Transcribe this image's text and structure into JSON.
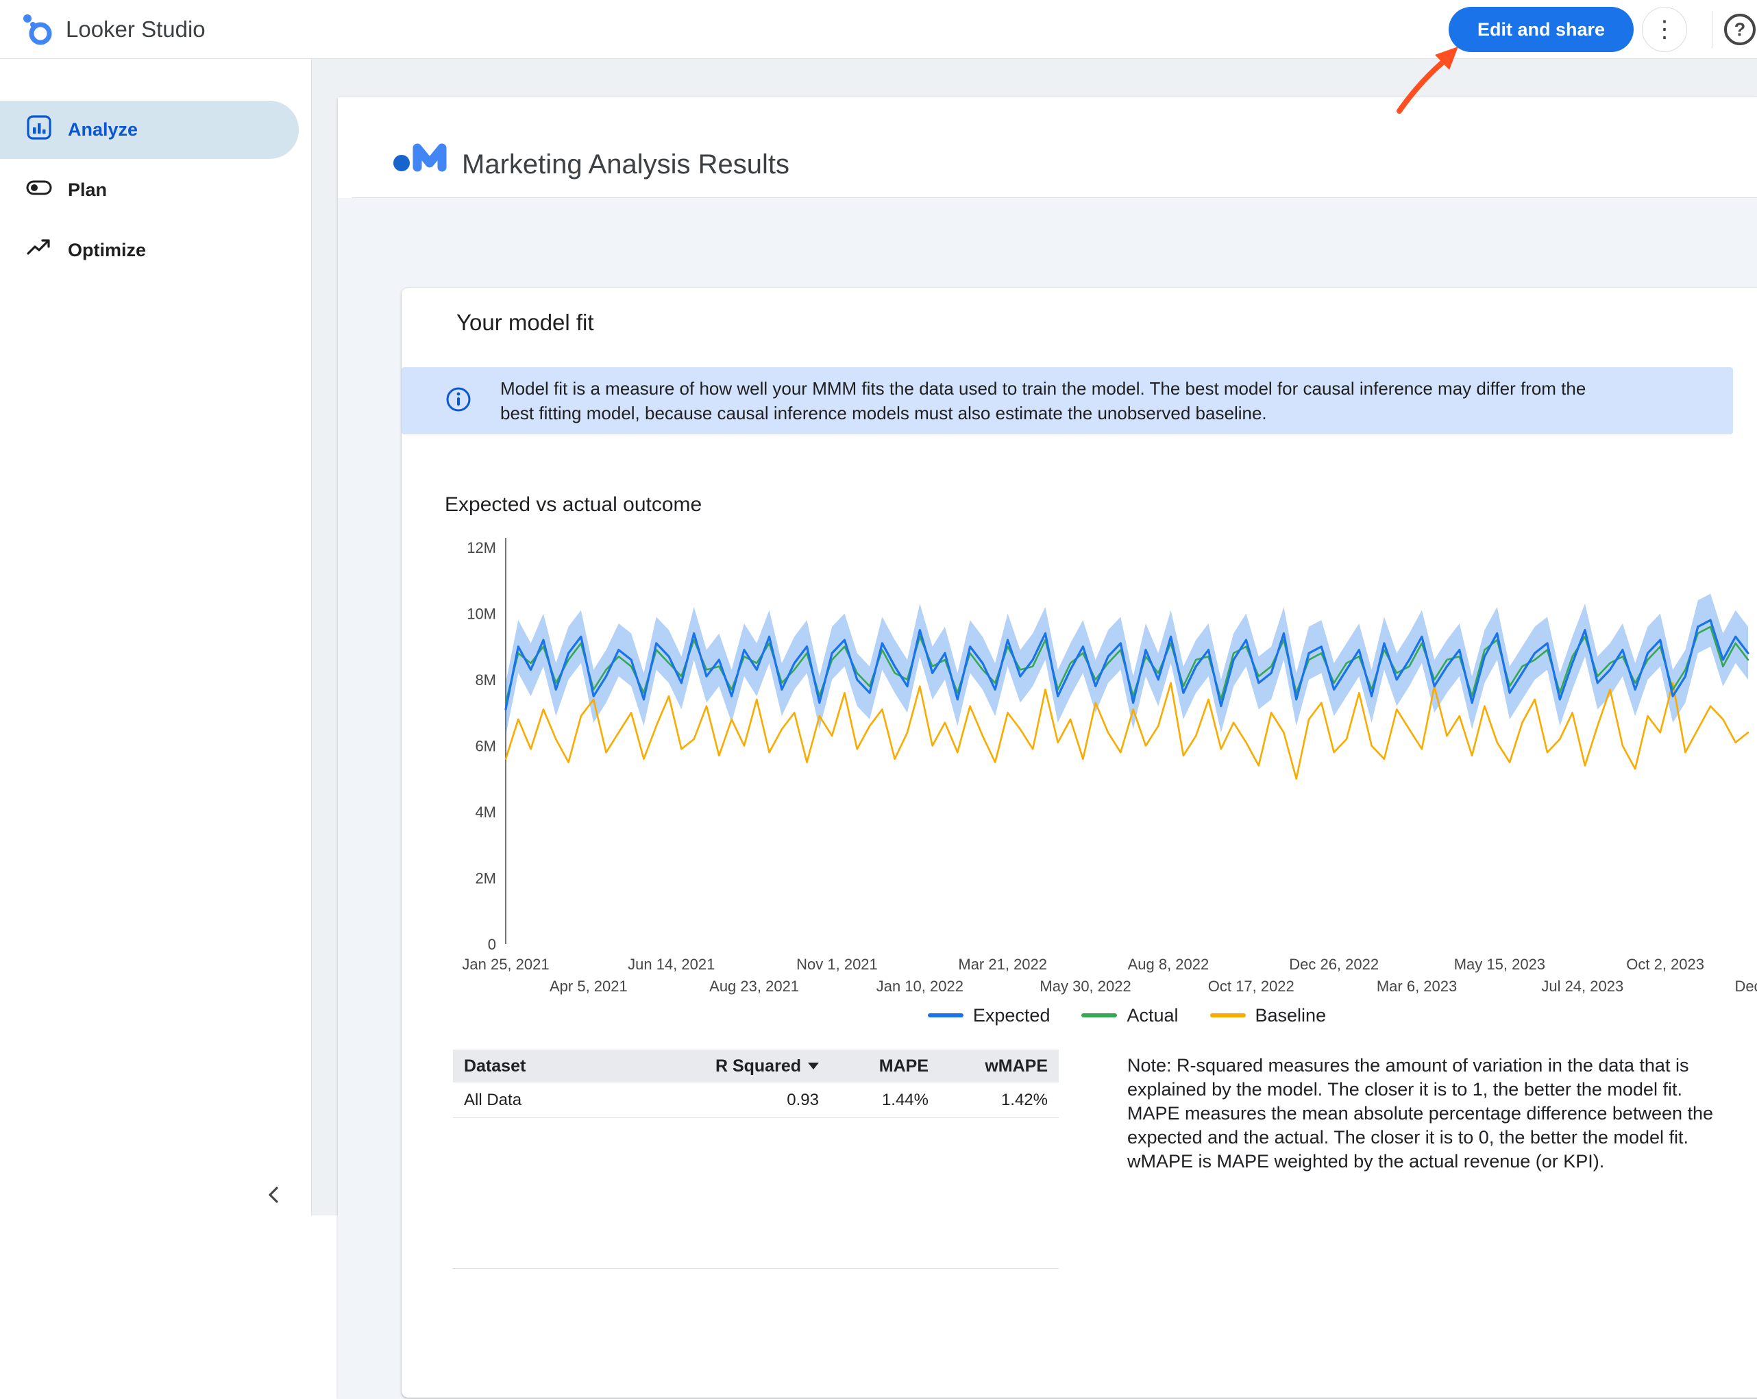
{
  "header": {
    "app_title": "Looker Studio",
    "edit_share_button": "Edit and share",
    "more_options_glyph": "⋮",
    "help_glyph": "?"
  },
  "annotation": {
    "arrow_points_to": "Edit and share"
  },
  "sidebar": {
    "items": [
      {
        "label": "Analyze",
        "selected": true
      },
      {
        "label": "Plan",
        "selected": false
      },
      {
        "label": "Optimize",
        "selected": false
      }
    ]
  },
  "report": {
    "title": "Marketing Analysis Results",
    "card": {
      "title": "Your model fit",
      "info_banner_line1": "Model fit is a measure of how well your MMM fits the data used to train the model. The best model for causal inference may differ from the",
      "info_banner_line2": "best fitting model, because causal inference models must also estimate the unobserved baseline.",
      "section_title": "Expected vs actual outcome"
    },
    "table": {
      "columns": [
        "Dataset",
        "R Squared",
        "MAPE",
        "wMAPE"
      ],
      "sorted_column": "R Squared",
      "rows": [
        [
          "All Data",
          "0.93",
          "1.44%",
          "1.42%"
        ]
      ]
    },
    "note": "Note: R-squared measures the amount of variation in the data that is explained by the model. The closer it is to 1, the better the model fit. MAPE measures the mean absolute percentage difference between the expected and the actual. The closer it is to 0, the better the model fit. wMAPE is MAPE weighted by the actual revenue (or KPI)."
  },
  "chart_data": {
    "type": "line",
    "title": "Expected vs actual outcome",
    "unit": "millions",
    "ylim": [
      0,
      12
    ],
    "grid": false,
    "legend_position": "bottom",
    "y_tick_labels": [
      "0",
      "2M",
      "4M",
      "6M",
      "8M",
      "10M",
      "12M"
    ],
    "x_tick_labels": [
      "Jan 25, 2021",
      "Apr 5, 2021",
      "Jun 14, 2021",
      "Aug 23, 2021",
      "Nov 1, 2021",
      "Jan 10, 2022",
      "Mar 21, 2022",
      "May 30, 2022",
      "Aug 8, 2022",
      "Oct 17, 2022",
      "Dec 26, 2022",
      "Mar 6, 2023",
      "May 15, 2023",
      "Jul 24, 2023",
      "Oct 2, 2023",
      "Dec"
    ],
    "band": {
      "series": "Expected",
      "half_width": 0.8,
      "color": "#1a73e8",
      "opacity": 0.33
    },
    "series": [
      {
        "name": "Expected",
        "color": "#1a73e8",
        "values": [
          7.1,
          9.0,
          8.3,
          9.2,
          7.7,
          8.8,
          9.3,
          7.5,
          8.1,
          8.9,
          8.6,
          7.4,
          9.1,
          8.7,
          7.9,
          9.4,
          8.1,
          8.6,
          7.5,
          8.9,
          8.3,
          9.3,
          7.7,
          8.5,
          9.0,
          7.3,
          8.8,
          9.2,
          8.0,
          7.6,
          9.1,
          8.4,
          7.8,
          9.5,
          8.2,
          8.8,
          7.4,
          9.0,
          8.5,
          7.7,
          9.2,
          8.1,
          8.6,
          9.4,
          7.5,
          8.3,
          9.0,
          7.8,
          8.7,
          9.1,
          7.3,
          8.9,
          8.0,
          9.3,
          7.6,
          8.4,
          8.9,
          7.2,
          8.6,
          9.2,
          7.9,
          8.2,
          9.4,
          7.4,
          8.8,
          9.0,
          7.7,
          8.3,
          8.9,
          7.5,
          9.1,
          8.0,
          8.6,
          9.3,
          7.8,
          8.4,
          8.9,
          7.3,
          8.7,
          9.4,
          7.6,
          8.2,
          8.8,
          9.1,
          7.4,
          8.5,
          9.5,
          7.9,
          8.3,
          8.9,
          7.7,
          8.8,
          9.2,
          7.5,
          8.1,
          9.6,
          9.8,
          8.6,
          9.3,
          8.8
        ]
      },
      {
        "name": "Actual",
        "color": "#34a853",
        "values": [
          7.3,
          8.8,
          8.5,
          9.0,
          7.9,
          8.6,
          9.1,
          7.7,
          8.3,
          8.7,
          8.4,
          7.6,
          8.9,
          8.5,
          8.1,
          9.2,
          8.3,
          8.4,
          7.7,
          8.7,
          8.5,
          9.1,
          7.9,
          8.3,
          8.8,
          7.5,
          8.6,
          9.0,
          8.2,
          7.8,
          8.9,
          8.2,
          8.0,
          9.3,
          8.4,
          8.6,
          7.6,
          8.8,
          8.3,
          7.9,
          9.0,
          8.3,
          8.4,
          9.2,
          7.7,
          8.5,
          8.8,
          8.0,
          8.5,
          8.9,
          7.5,
          8.7,
          8.2,
          9.1,
          7.8,
          8.6,
          8.7,
          7.4,
          8.8,
          9.0,
          8.1,
          8.4,
          9.2,
          7.6,
          8.6,
          8.8,
          7.9,
          8.5,
          8.7,
          7.7,
          8.9,
          8.2,
          8.4,
          9.1,
          8.0,
          8.6,
          8.7,
          7.5,
          8.9,
          9.2,
          7.8,
          8.4,
          8.6,
          8.9,
          7.6,
          8.7,
          9.3,
          8.1,
          8.5,
          8.7,
          7.9,
          8.6,
          9.0,
          7.7,
          8.3,
          9.4,
          9.6,
          8.4,
          9.1,
          8.6
        ]
      },
      {
        "name": "Baseline",
        "color": "#f9ab00",
        "values": [
          5.6,
          6.8,
          5.9,
          7.1,
          6.2,
          5.5,
          6.9,
          7.4,
          5.8,
          6.4,
          7.0,
          5.6,
          6.6,
          7.5,
          5.9,
          6.2,
          7.2,
          5.7,
          6.8,
          6.0,
          7.4,
          5.8,
          6.5,
          7.0,
          5.5,
          6.9,
          6.3,
          7.6,
          5.9,
          6.6,
          7.1,
          5.6,
          6.4,
          7.8,
          6.0,
          6.7,
          5.8,
          7.2,
          6.3,
          5.5,
          7.0,
          6.5,
          5.9,
          7.7,
          6.1,
          6.8,
          5.6,
          7.3,
          6.4,
          5.8,
          7.1,
          6.0,
          6.6,
          7.9,
          5.7,
          6.3,
          7.4,
          5.9,
          6.7,
          6.1,
          5.4,
          7.0,
          6.4,
          5.0,
          6.8,
          7.3,
          5.8,
          6.2,
          7.6,
          6.0,
          5.6,
          7.1,
          6.5,
          5.9,
          7.8,
          6.3,
          6.9,
          5.7,
          7.2,
          6.1,
          5.5,
          6.7,
          7.4,
          5.8,
          6.2,
          7.0,
          5.4,
          6.6,
          7.7,
          6.0,
          5.3,
          6.9,
          6.4,
          7.9,
          5.8,
          6.5,
          7.2,
          6.8,
          6.1,
          6.4
        ]
      }
    ]
  },
  "colors": {
    "accent_blue": "#1a73e8",
    "expected": "#1a73e8",
    "actual": "#34a853",
    "baseline": "#f9ab00",
    "info_banner_bg": "#d3e3fd",
    "selected_nav_bg": "#d4e4ef",
    "annotation_arrow": "#ff4e1f"
  }
}
